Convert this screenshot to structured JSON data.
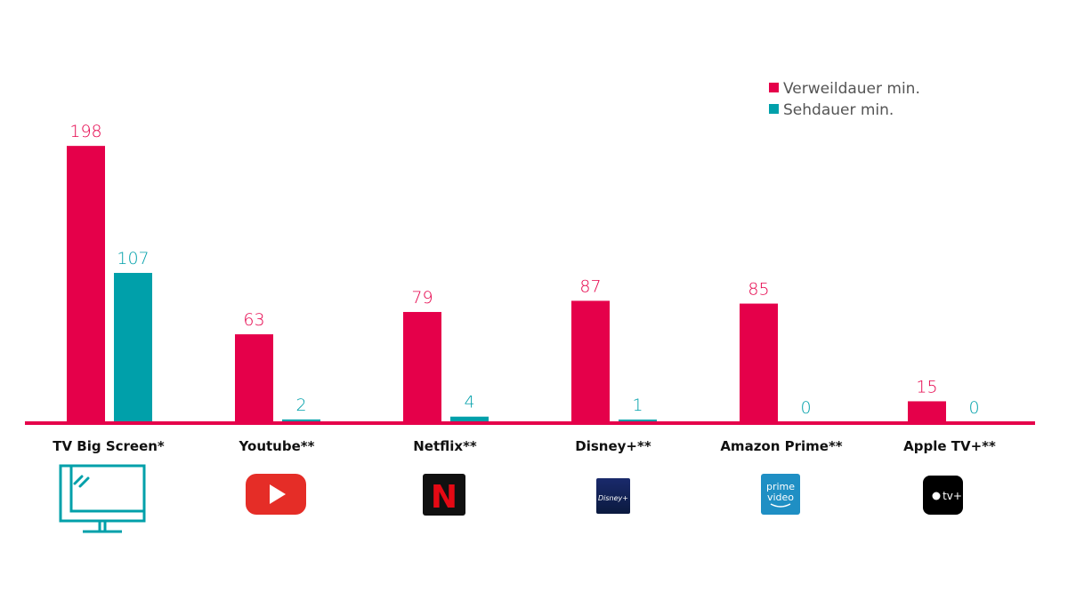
{
  "chart_data": {
    "type": "bar",
    "categories": [
      "TV Big Screen*",
      "Youtube**",
      "Netflix**",
      "Disney+**",
      "Amazon Prime**",
      "Apple TV+**"
    ],
    "series": [
      {
        "name": "Verweildauer min.",
        "color": "#e5004a",
        "values": [
          198,
          63,
          79,
          87,
          85,
          15
        ]
      },
      {
        "name": "Sehdauer min.",
        "color": "#00a0aa",
        "values": [
          107,
          2,
          4,
          1,
          0,
          0
        ]
      }
    ],
    "value_labels": [
      [
        "198",
        "63",
        "79",
        "87",
        "85",
        "15"
      ],
      [
        "107",
        "2",
        "4",
        "1",
        "0",
        "0"
      ]
    ],
    "ylim": [
      0,
      210
    ],
    "grid": false,
    "legend_position": "top-right",
    "baseline_color": "#e5004a",
    "category_icons": [
      "tv-screen-icon",
      "youtube-logo",
      "netflix-logo",
      "disney-plus-logo",
      "prime-video-logo",
      "apple-tv-plus-logo"
    ],
    "logo_texts": {
      "netflix": "N",
      "disney": "Disney+",
      "prime_line1": "prime",
      "prime_line2": "video",
      "appletv": "tv+"
    }
  }
}
